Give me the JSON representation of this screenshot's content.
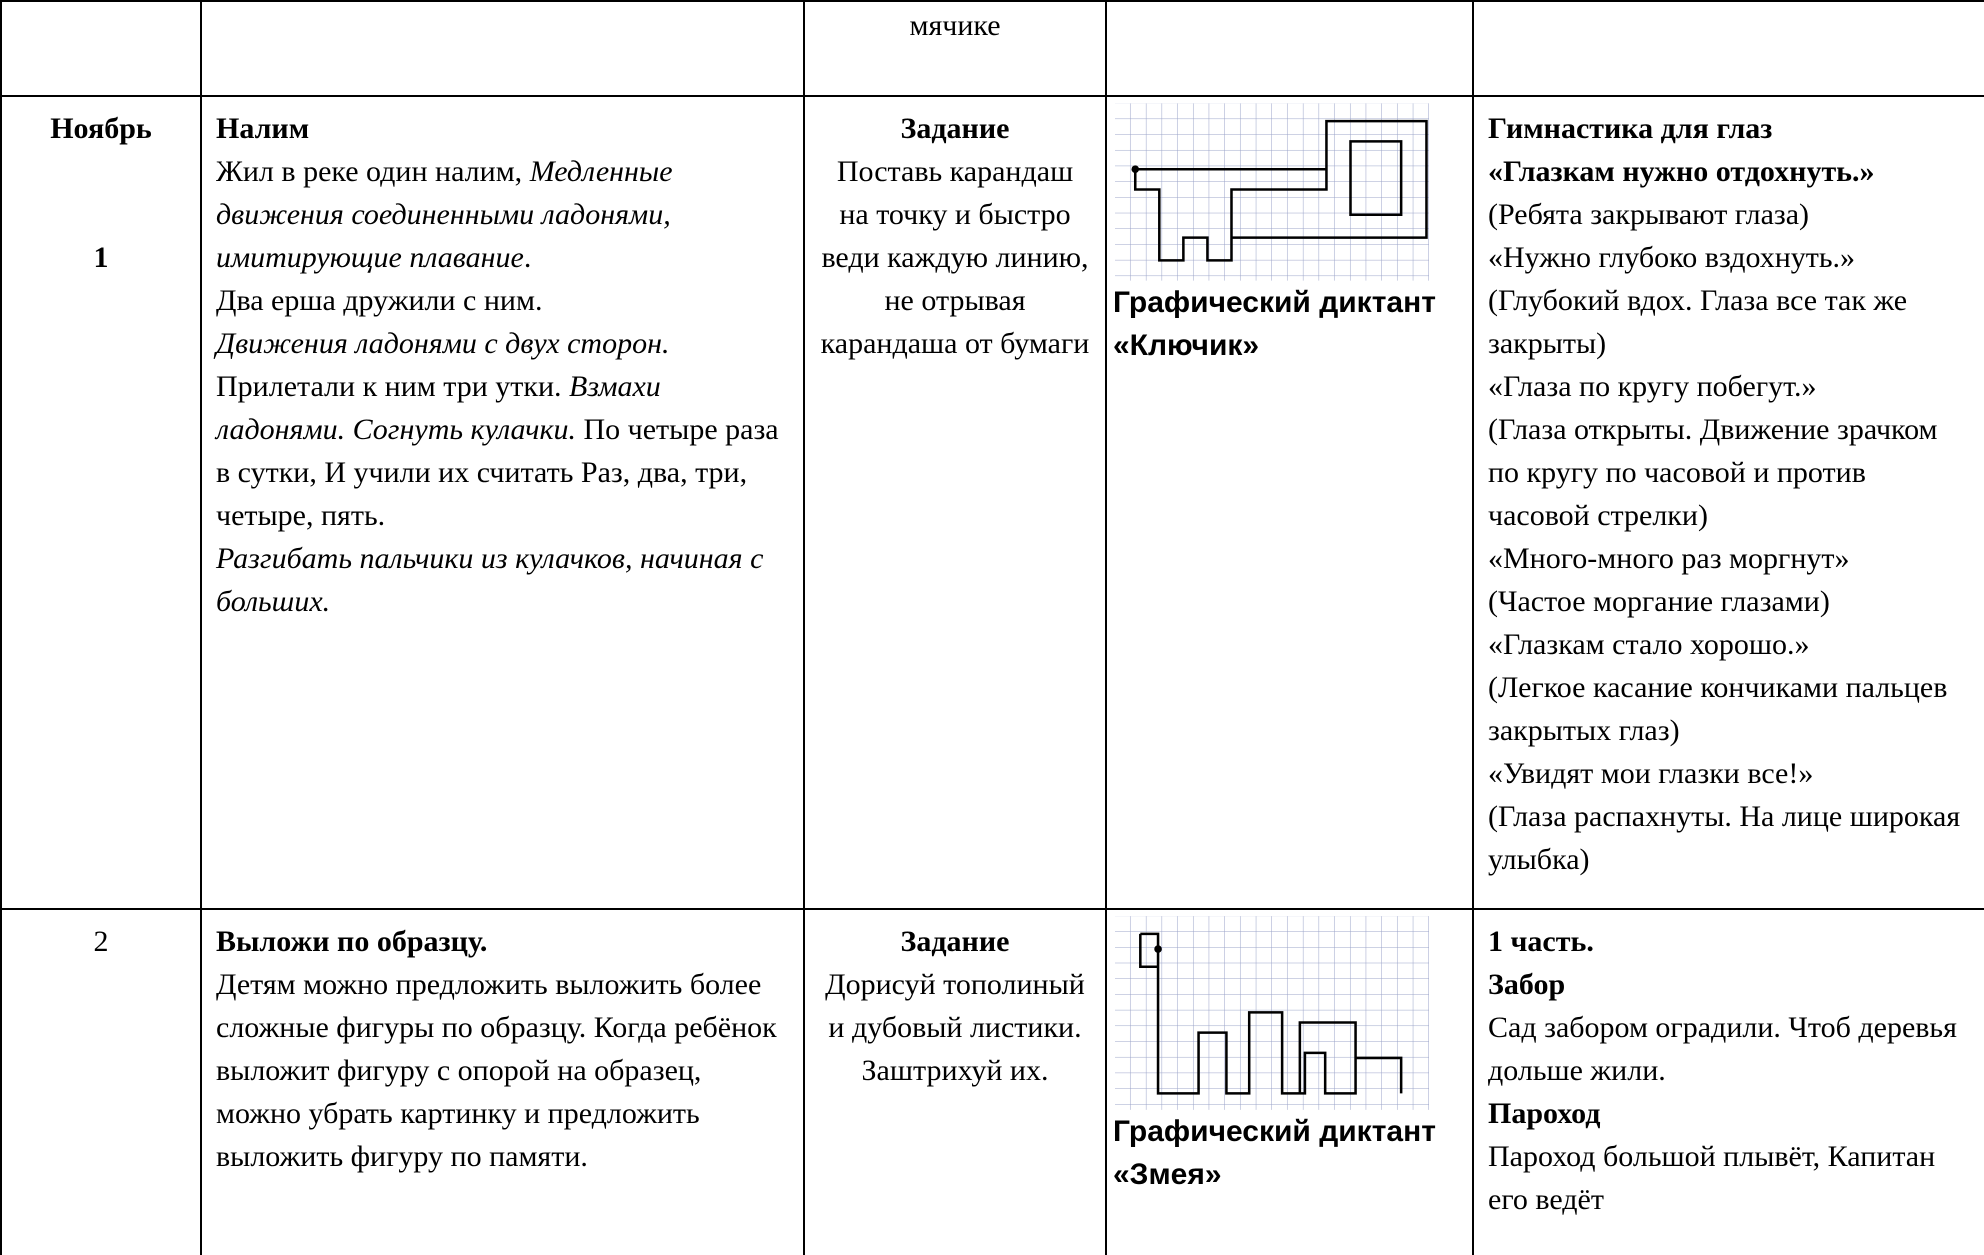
{
  "table": {
    "top_row": {
      "text": "мячике"
    },
    "row_november": {
      "month": "Ноябрь",
      "week": "1",
      "game": {
        "title": "Налим",
        "paragraphs": [
          [
            {
              "text": "Жил в реке один налим, "
            },
            {
              "text": "Медленные движения соединенными ладонями, имитирующие плавание",
              "italic": true
            },
            {
              "text": "."
            }
          ],
          [
            {
              "text": "Два ерша дружили с ним."
            }
          ],
          [
            {
              "text": "Движения ладонями с двух сторон.",
              "italic": true
            }
          ],
          [
            {
              "text": "Прилетали к ним три утки. "
            },
            {
              "text": "Взмахи ладонями. Согнуть кулачки.",
              "italic": true
            },
            {
              "text": " По четыре раза в сутки, И учили их считать Раз, два, три, четыре, пять."
            }
          ],
          [
            {
              "text": "Разгибать пальчики из кулачков, начиная с больших.",
              "italic": true
            }
          ]
        ]
      },
      "task": {
        "title": "Задание",
        "text": "Поставь карандаш на точку и быстро веди каждую линию, не отрывая карандаша от бумаги"
      },
      "dictation": "Графический диктант «Ключик»",
      "exercise": {
        "title": "Гимнастика для глаз",
        "subtitle": "«Глазкам нужно отдохнуть.»",
        "lines": [
          "(Ребята закрывают глаза)",
          "«Нужно глубоко вздохнуть.»",
          "(Глубокий вдох. Глаза все так же закрыты)",
          "«Глаза по кругу побегут.»",
          "(Глаза открыты. Движение зрачком по кругу по часовой и против часовой стрелки)",
          "«Много-много раз моргнут»",
          "(Частое моргание глазами)",
          "«Глазкам стало хорошо.»",
          "(Легкое касание кончиками пальцев закрытых глаз)",
          "«Увидят мои глазки все!»",
          "(Глаза распахнуты. На лице широкая улыбка)"
        ]
      }
    },
    "row_2": {
      "week": "2",
      "game": {
        "title": "Выложи по образцу.",
        "text": "Детям  можно предложить выложить более сложные фигуры по образцу. Когда ребёнок выложит фигуру с опорой на образец, можно убрать картинку и предложить выложить фигуру по памяти."
      },
      "task": {
        "title": "Задание",
        "text": "Дорисуй тополиный и дубовый листики. Заштрихуй их."
      },
      "dictation": "Графический диктант «Змея»",
      "exercise": {
        "part": "1 часть.",
        "items": [
          {
            "title": "Забор",
            "text": "Сад забором оградили. Чтоб деревья дольше жили."
          },
          {
            "title": "Пароход",
            "text": "Пароход большой плывёт, Капитан его ведёт"
          }
        ]
      }
    }
  }
}
